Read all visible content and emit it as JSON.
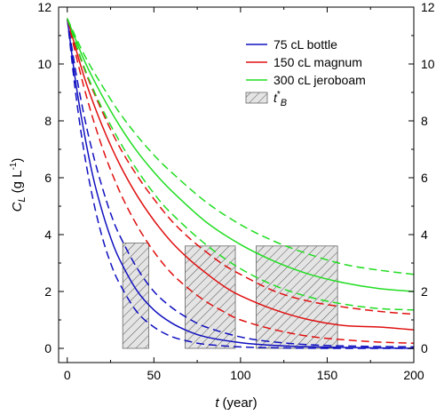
{
  "chart_data": {
    "type": "line",
    "title": "",
    "xlabel_main": "t",
    "xlabel_unit": "(year)",
    "ylabel_main": "C",
    "ylabel_sub": "L",
    "ylabel_unit": "(g L",
    "ylabel_sup": "-1",
    "ylabel_close": ")",
    "xlim": [
      -5,
      200
    ],
    "ylim": [
      -0.5,
      12
    ],
    "xticks": [
      0,
      50,
      100,
      150,
      200
    ],
    "yticks": [
      0,
      2,
      4,
      6,
      8,
      10,
      12
    ],
    "grid": false,
    "legend_position": "top-right",
    "series": [
      {
        "name": "75 cL bottle",
        "color": "#1010c0",
        "style": "solid",
        "x": [
          0,
          5,
          10,
          15,
          20,
          25,
          30,
          40,
          50,
          60,
          70,
          80,
          100,
          120,
          150,
          200
        ],
        "y": [
          11.6,
          9.3,
          7.5,
          6.0,
          4.85,
          3.9,
          3.15,
          2.05,
          1.35,
          0.9,
          0.6,
          0.4,
          0.2,
          0.1,
          0.04,
          0.0
        ]
      },
      {
        "name": "",
        "color": "#1010c0",
        "style": "dashed",
        "x": [
          0,
          5,
          10,
          15,
          20,
          25,
          30,
          40,
          50,
          60,
          70,
          80,
          100,
          120,
          150,
          200
        ],
        "y": [
          11.6,
          8.9,
          6.8,
          5.2,
          3.95,
          3.0,
          2.3,
          1.3,
          0.75,
          0.42,
          0.25,
          0.14,
          0.05,
          0.02,
          0.0,
          0.0
        ]
      },
      {
        "name": "",
        "color": "#1010c0",
        "style": "dashed",
        "x": [
          0,
          5,
          10,
          15,
          20,
          25,
          30,
          40,
          50,
          60,
          70,
          80,
          100,
          120,
          150,
          200
        ],
        "y": [
          11.6,
          9.7,
          8.1,
          6.8,
          5.7,
          4.75,
          4.0,
          2.85,
          2.0,
          1.45,
          1.05,
          0.75,
          0.4,
          0.22,
          0.1,
          0.05
        ]
      },
      {
        "name": "150 cL magnum",
        "color": "#e01010",
        "style": "solid",
        "x": [
          0,
          10,
          20,
          30,
          40,
          50,
          60,
          70,
          80,
          90,
          100,
          120,
          140,
          160,
          180,
          200
        ],
        "y": [
          11.6,
          9.5,
          7.85,
          6.5,
          5.4,
          4.5,
          3.75,
          3.15,
          2.65,
          2.2,
          1.85,
          1.35,
          1.0,
          0.8,
          0.75,
          0.65
        ]
      },
      {
        "name": "",
        "color": "#e01010",
        "style": "dashed",
        "x": [
          0,
          10,
          20,
          30,
          40,
          50,
          60,
          70,
          80,
          90,
          100,
          120,
          140,
          160,
          180,
          200
        ],
        "y": [
          11.6,
          9.1,
          7.1,
          5.55,
          4.35,
          3.4,
          2.65,
          2.1,
          1.65,
          1.3,
          1.0,
          0.65,
          0.42,
          0.3,
          0.22,
          0.18
        ]
      },
      {
        "name": "",
        "color": "#e01010",
        "style": "dashed",
        "x": [
          0,
          10,
          20,
          30,
          40,
          50,
          60,
          70,
          80,
          90,
          100,
          120,
          140,
          160,
          180,
          200
        ],
        "y": [
          11.6,
          9.8,
          8.35,
          7.1,
          6.1,
          5.25,
          4.5,
          3.9,
          3.4,
          2.95,
          2.6,
          2.0,
          1.65,
          1.45,
          1.3,
          1.2
        ]
      },
      {
        "name": "300 cL jeroboam",
        "color": "#22dd22",
        "style": "solid",
        "x": [
          0,
          10,
          20,
          30,
          40,
          50,
          60,
          80,
          100,
          120,
          140,
          160,
          180,
          200
        ],
        "y": [
          11.6,
          10.1,
          8.9,
          7.85,
          6.95,
          6.2,
          5.55,
          4.45,
          3.65,
          3.05,
          2.6,
          2.3,
          2.1,
          2.0
        ]
      },
      {
        "name": "",
        "color": "#22dd22",
        "style": "dashed",
        "x": [
          0,
          10,
          20,
          30,
          40,
          50,
          60,
          80,
          100,
          120,
          140,
          160,
          180,
          200
        ],
        "y": [
          11.6,
          9.85,
          8.45,
          7.3,
          6.3,
          5.45,
          4.75,
          3.65,
          2.8,
          2.2,
          1.8,
          1.55,
          1.4,
          1.35
        ]
      },
      {
        "name": "",
        "color": "#22dd22",
        "style": "dashed",
        "x": [
          0,
          10,
          20,
          30,
          40,
          50,
          60,
          80,
          100,
          120,
          140,
          160,
          180,
          200
        ],
        "y": [
          11.6,
          10.3,
          9.25,
          8.3,
          7.5,
          6.8,
          6.2,
          5.15,
          4.35,
          3.75,
          3.3,
          2.95,
          2.75,
          2.6
        ]
      }
    ],
    "regions": [
      {
        "name": "t*B",
        "x": [
          32,
          47
        ],
        "y_top": 3.7,
        "fill": "#e4e4e4"
      },
      {
        "name": "t*B",
        "x": [
          68,
          97
        ],
        "y_top": 3.6,
        "fill": "#e4e4e4"
      },
      {
        "name": "t*B",
        "x": [
          109,
          156
        ],
        "y_top": 3.6,
        "fill": "#e4e4e4"
      }
    ],
    "legend": [
      {
        "label": "75 cL bottle",
        "kind": "line",
        "color": "#1010c0"
      },
      {
        "label": "150 cL magnum",
        "kind": "line",
        "color": "#e01010"
      },
      {
        "label": "300 cL jeroboam",
        "kind": "line",
        "color": "#22dd22"
      },
      {
        "label_main": "t",
        "label_sup": "*",
        "label_sub": "B",
        "kind": "hatch",
        "color": "#e4e4e4"
      }
    ]
  }
}
